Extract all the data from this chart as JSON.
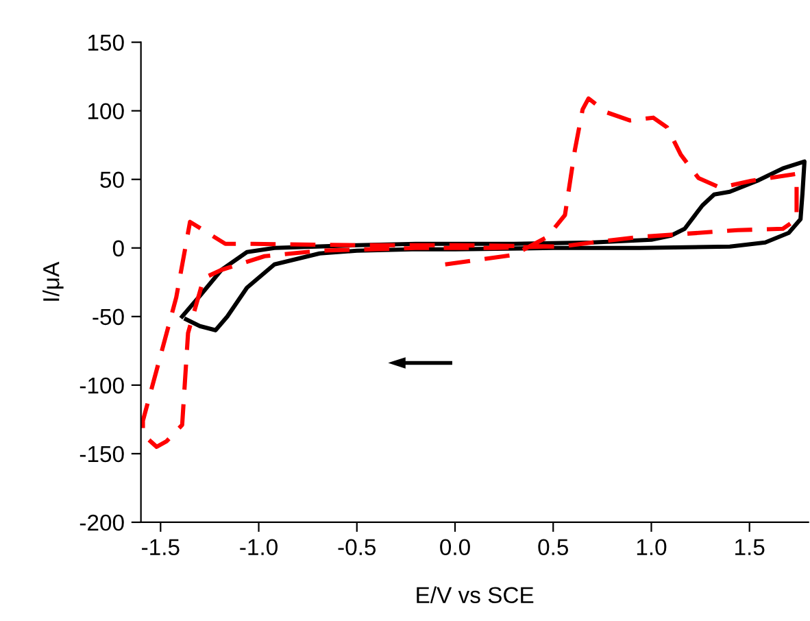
{
  "chart_data": {
    "type": "line",
    "xlabel": "E/V vs SCE",
    "ylabel": "I/μA",
    "xlim": [
      -1.6,
      1.8
    ],
    "ylim": [
      -200,
      150
    ],
    "xticks": [
      {
        "value": -1.5,
        "label": "-1.5"
      },
      {
        "value": -1.0,
        "label": "-1.0"
      },
      {
        "value": -0.5,
        "label": "-0.5"
      },
      {
        "value": 0,
        "label": "0.0"
      },
      {
        "value": 0.5,
        "label": "0.5"
      },
      {
        "value": 1.0,
        "label": "1.0"
      },
      {
        "value": 1.5,
        "label": "1.5"
      }
    ],
    "yticks": [
      -200,
      -150,
      -100,
      -50,
      0,
      50,
      100,
      150
    ],
    "grid": false,
    "legend": false,
    "marker": "none",
    "series": [
      {
        "color": "#000000",
        "line_style": "solid",
        "x": [
          -1.39,
          -1.3,
          -1.19,
          -1.06,
          -0.92,
          -0.5,
          -0.2,
          0.3,
          0.7,
          1.0,
          1.1,
          1.17,
          1.26,
          1.32,
          1.4,
          1.54,
          1.67,
          1.78,
          1.77,
          1.76,
          1.7,
          1.58,
          1.4,
          0.94,
          0.5,
          0,
          -0.22,
          -0.5,
          -0.69,
          -0.92,
          -1.06,
          -1.16,
          -1.22,
          -1.3,
          -1.37
        ],
        "values": [
          -50,
          -35,
          -16,
          -3,
          0,
          2,
          3,
          3,
          4,
          6,
          9,
          14,
          31,
          39,
          41,
          49,
          58,
          63,
          40,
          21,
          11,
          4,
          1,
          0,
          0,
          -1,
          -1,
          -2,
          -4,
          -12,
          -29,
          -50,
          -60,
          -57,
          -52
        ]
      },
      {
        "color": "#ff0000",
        "line_style": "dashed",
        "x": [
          -0.05,
          0.1,
          0.3,
          0.47,
          0.56,
          0.61,
          0.65,
          0.68,
          0.77,
          0.89,
          1.01,
          1.08,
          1.15,
          1.24,
          1.35,
          1.51,
          1.74,
          1.74,
          1.67,
          1.44,
          1.24,
          0.94,
          0.7,
          0.54,
          0,
          -0.5,
          -1.03,
          -1.17,
          -1.26,
          -1.35,
          -1.42,
          -1.52,
          -1.59,
          -1.59,
          -1.52,
          -1.47,
          -1.39,
          -1.36,
          -1.28,
          -1.19,
          -0.97,
          -0.69,
          -0.2,
          0.2,
          0.45
        ],
        "values": [
          -12,
          -9,
          -5,
          8,
          24,
          71,
          101,
          109,
          99,
          93,
          95,
          88,
          68,
          51,
          44,
          49,
          54,
          21,
          14,
          13,
          11,
          8,
          4,
          1,
          2,
          2,
          3,
          3,
          11,
          19,
          -36,
          -89,
          -126,
          -136,
          -145,
          -141,
          -129,
          -62,
          -22,
          -16,
          -6,
          -2,
          0,
          0,
          1
        ]
      }
    ]
  }
}
